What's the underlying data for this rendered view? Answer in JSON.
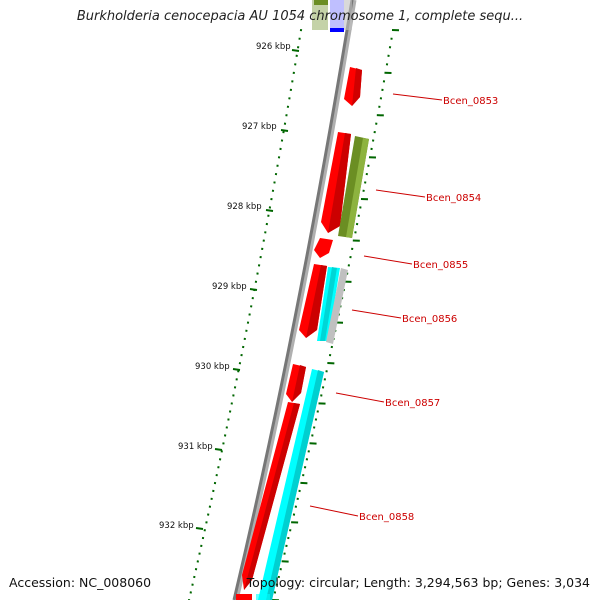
{
  "title": "Burkholderia cenocepacia AU 1054 chromosome 1, complete sequ...",
  "accession": "Accession: NC_008060",
  "topology": "Topology: circular; Length: 3,294,563 bp; Genes: 3,034",
  "colors": {
    "backbone": "#808080",
    "tick": "#006600",
    "gene_forward_red": "#ff0000",
    "gene_olive": "#6b8e23",
    "gene_cyan": "#00ffff",
    "gene_blue": "#0000ff",
    "gene_gray": "#c0c0c0",
    "label": "#cc0000"
  },
  "scale_labels": [
    {
      "kbp": 926,
      "text": "926 kbp"
    },
    {
      "kbp": 927,
      "text": "927 kbp"
    },
    {
      "kbp": 928,
      "text": "928 kbp"
    },
    {
      "kbp": 929,
      "text": "929 kbp"
    },
    {
      "kbp": 930,
      "text": "930 kbp"
    },
    {
      "kbp": 931,
      "text": "931 kbp"
    },
    {
      "kbp": 932,
      "text": "932 kbp"
    }
  ],
  "gene_labels": [
    "Bcen_0853",
    "Bcen_0854",
    "Bcen_0855",
    "Bcen_0856",
    "Bcen_0857",
    "Bcen_0858"
  ]
}
